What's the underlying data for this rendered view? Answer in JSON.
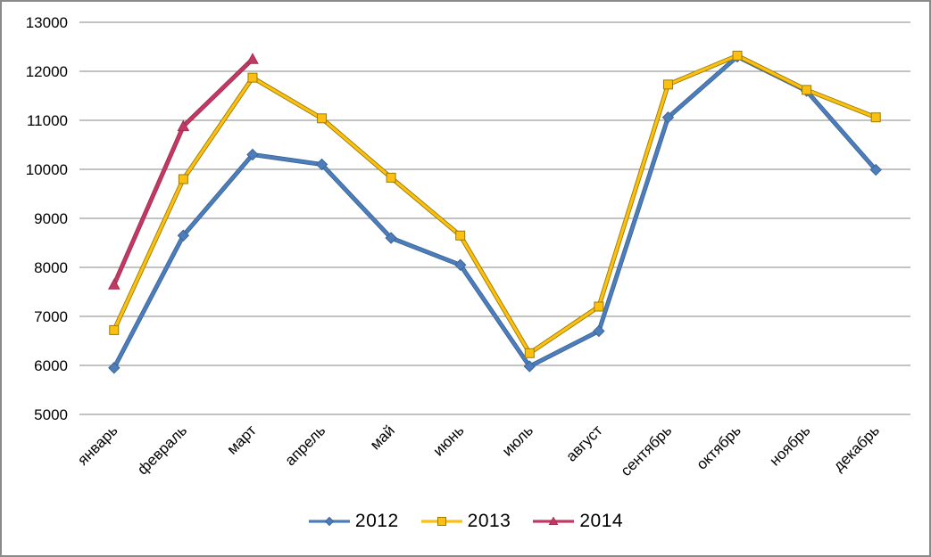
{
  "chart_data": {
    "type": "line",
    "title": "",
    "xlabel": "",
    "ylabel": "",
    "categories": [
      "январь",
      "февраль",
      "март",
      "апрель",
      "май",
      "июнь",
      "июль",
      "август",
      "сентябрь",
      "октябрь",
      "ноябрь",
      "декабрь"
    ],
    "series": [
      {
        "name": "2012",
        "marker": "diamond",
        "color": "#4d7ebb",
        "edge_color": "#3c6699",
        "values": [
          5950,
          8650,
          10300,
          10100,
          8600,
          8050,
          5980,
          6700,
          11060,
          12300,
          11600,
          9990
        ]
      },
      {
        "name": "2013",
        "marker": "square",
        "color": "#fcbf12",
        "edge_color": "#9a7d00",
        "values": [
          6720,
          9800,
          11870,
          11040,
          9830,
          8650,
          6250,
          7200,
          11730,
          12320,
          11620,
          11060
        ]
      },
      {
        "name": "2014",
        "marker": "triangle",
        "color": "#c23a64",
        "edge_color": "#a22e54",
        "values": [
          7650,
          10880,
          12250,
          null,
          null,
          null,
          null,
          null,
          null,
          null,
          null,
          null
        ]
      }
    ],
    "ylim": [
      5000,
      13000
    ],
    "y_ticks": [
      5000,
      6000,
      7000,
      8000,
      9000,
      10000,
      11000,
      12000,
      13000
    ],
    "grid": "horizontal",
    "gridline_color": "#878787",
    "axis_text_color": "#000000",
    "frame_border_color": "#8a8a8a",
    "legend_position": "bottom",
    "x_label_rotation_deg": -45
  }
}
